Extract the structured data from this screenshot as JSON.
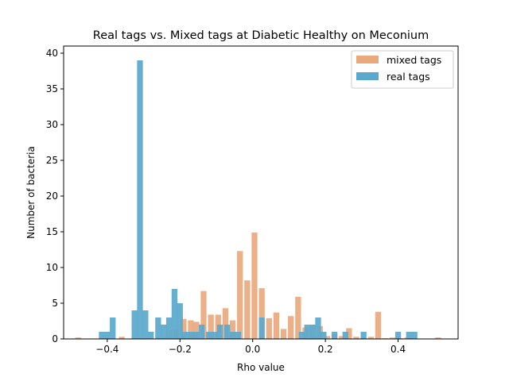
{
  "chart_data": {
    "type": "bar",
    "title": "Real tags vs. Mixed tags at Diabetic Healthy on Meconium",
    "xlabel": "Rho value",
    "ylabel": "Number of bacteria",
    "xlim": [
      -0.52,
      0.565
    ],
    "ylim": [
      0,
      41
    ],
    "xticks": [
      -0.4,
      -0.2,
      0.0,
      0.2,
      0.4
    ],
    "xtick_labels": [
      "−0.4",
      "−0.2",
      "0.0",
      "0.2",
      "0.4"
    ],
    "yticks": [
      0,
      5,
      10,
      15,
      20,
      25,
      30,
      35,
      40
    ],
    "ytick_labels": [
      "0",
      "5",
      "10",
      "15",
      "20",
      "25",
      "30",
      "35",
      "40"
    ],
    "legend_position": "top-right",
    "bar_width": 0.016,
    "series": [
      {
        "name": "mixed tags",
        "color": "#e9a97d",
        "x": [
          -0.48,
          -0.36,
          -0.23,
          -0.21,
          -0.19,
          -0.17,
          -0.155,
          -0.135,
          -0.115,
          -0.095,
          -0.075,
          -0.055,
          -0.035,
          -0.015,
          0.005,
          0.025,
          0.045,
          0.065,
          0.085,
          0.105,
          0.125,
          0.145,
          0.165,
          0.185,
          0.205,
          0.225,
          0.245,
          0.265,
          0.285,
          0.305,
          0.325,
          0.345,
          0.365,
          0.385,
          0.405,
          0.425,
          0.51
        ],
        "values": [
          0.2,
          0.3,
          1.2,
          1.3,
          2.8,
          2.6,
          2.4,
          6.7,
          3.4,
          3.4,
          4.3,
          2.6,
          12.3,
          8.2,
          14.9,
          7.1,
          2.9,
          3.7,
          1.4,
          3.2,
          5.9,
          1.6,
          2.0,
          1.8,
          0.4,
          0.7,
          0.4,
          1.5,
          0.3,
          0.2,
          0.3,
          3.8,
          0.1,
          0.2,
          0.1,
          0.2,
          0.2
        ]
      },
      {
        "name": "real tags",
        "color": "#5aa8cd",
        "x": [
          -0.415,
          -0.4,
          -0.385,
          -0.325,
          -0.31,
          -0.295,
          -0.28,
          -0.26,
          -0.245,
          -0.23,
          -0.215,
          -0.2,
          -0.185,
          -0.17,
          -0.155,
          -0.14,
          -0.12,
          -0.105,
          -0.09,
          -0.07,
          -0.055,
          -0.04,
          0.025,
          0.135,
          0.15,
          0.165,
          0.18,
          0.195,
          0.225,
          0.255,
          0.305,
          0.4,
          0.43,
          0.445
        ],
        "values": [
          1,
          1,
          3,
          4,
          39,
          4,
          1,
          3,
          2,
          3,
          7,
          5,
          1,
          1,
          1,
          2,
          1,
          1,
          2,
          2,
          1,
          1,
          3,
          1,
          2,
          2,
          3,
          1,
          1,
          1,
          1,
          1,
          1,
          1
        ]
      }
    ]
  }
}
